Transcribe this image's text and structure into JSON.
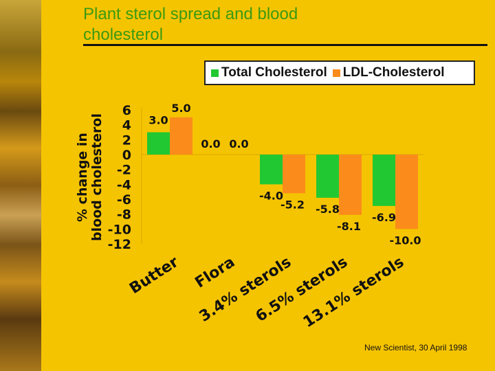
{
  "title": "Plant sterol spread and blood cholesterol",
  "source": "New Scientist, 30 April 1998",
  "colors": {
    "background": "#f5c400",
    "title": "#3c9a12",
    "total": "#22c832",
    "ldl": "#fb8c1c"
  },
  "chart_data": {
    "type": "bar",
    "categories": [
      "Butter",
      "Flora",
      "3.4% sterols",
      "6.5% sterols",
      "13.1% sterols"
    ],
    "series": [
      {
        "name": "Total Cholesterol",
        "values": [
          3.0,
          0.0,
          -4.0,
          -5.8,
          -6.9
        ],
        "labels": [
          "3.0",
          "0.0",
          "-4.0",
          "-5.8",
          "-6.9"
        ]
      },
      {
        "name": "LDL-Cholesterol",
        "values": [
          5.0,
          0.0,
          -5.2,
          -8.1,
          -10.0
        ],
        "labels": [
          "5.0",
          "0.0",
          "-5.2",
          "-8.1",
          "-10.0"
        ]
      }
    ],
    "ylabel": "% change in blood cholesterol",
    "xlabel": "",
    "ylim": [
      -12,
      6
    ],
    "yticks": [
      "6",
      "4",
      "2",
      "0",
      "-2",
      "-4",
      "-6",
      "-8",
      "-10",
      "-12"
    ],
    "legend": "top",
    "grid": false
  }
}
